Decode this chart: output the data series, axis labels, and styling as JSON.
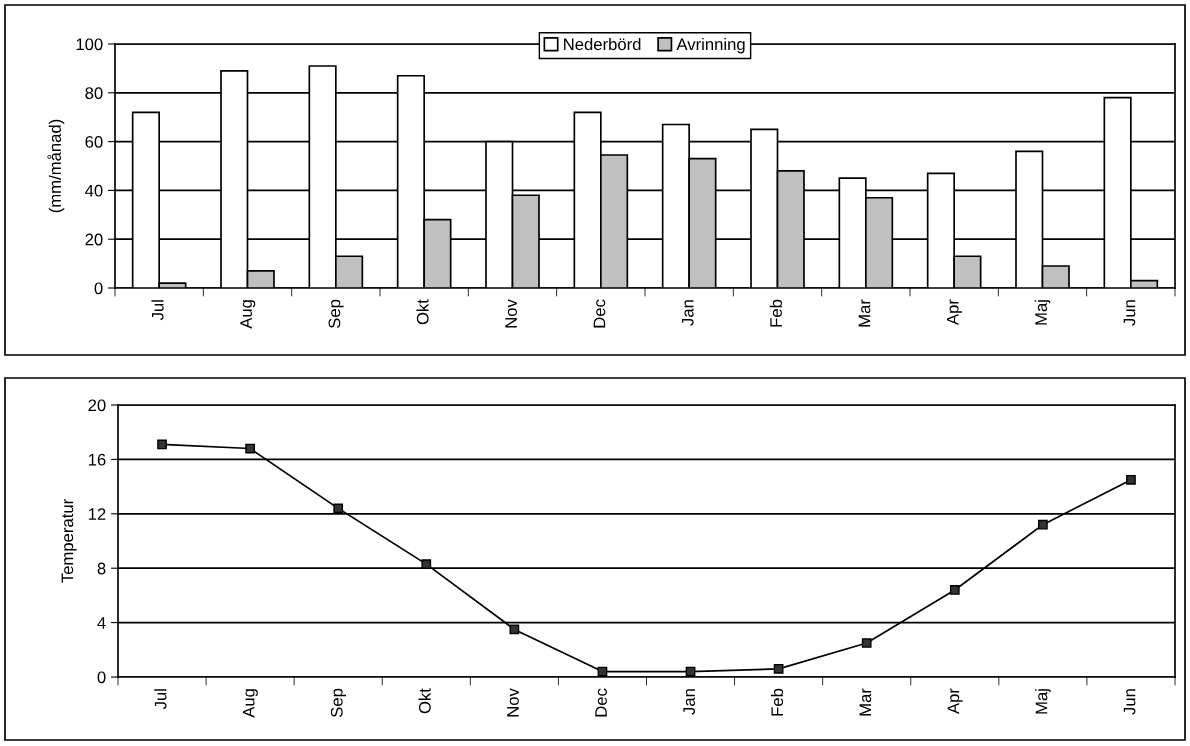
{
  "chart_data": [
    {
      "type": "bar",
      "ylabel": "(mm/månad)",
      "categories": [
        "Jul",
        "Aug",
        "Sep",
        "Okt",
        "Nov",
        "Dec",
        "Jan",
        "Feb",
        "Mar",
        "Apr",
        "Maj",
        "Jun"
      ],
      "series": [
        {
          "name": "Nederbörd",
          "color": "#ffffff",
          "values": [
            72,
            89,
            91,
            87,
            60,
            72,
            67,
            65,
            45,
            47,
            56,
            78
          ]
        },
        {
          "name": "Avrinning",
          "color": "#c0c0c0",
          "values": [
            2,
            7,
            13,
            28,
            38,
            54.5,
            53,
            48,
            37,
            13,
            9,
            3
          ]
        }
      ],
      "ylim": [
        0,
        100
      ],
      "yticks": [
        0,
        20,
        40,
        60,
        80,
        100
      ],
      "grid": "y",
      "legend": "top"
    },
    {
      "type": "line",
      "ylabel": "Temperatur",
      "categories": [
        "Jul",
        "Aug",
        "Sep",
        "Okt",
        "Nov",
        "Dec",
        "Jan",
        "Feb",
        "Mar",
        "Apr",
        "Maj",
        "Jun"
      ],
      "series": [
        {
          "color": "#000000",
          "values": [
            17.1,
            16.8,
            12.4,
            8.3,
            3.5,
            0.4,
            0.4,
            0.6,
            2.5,
            6.4,
            11.2,
            14.5
          ]
        }
      ],
      "ylim": [
        0,
        20
      ],
      "yticks": [
        0,
        4,
        8,
        12,
        16,
        20
      ],
      "grid": "y",
      "marker": "square",
      "line_style": "solid",
      "legend": false
    }
  ]
}
